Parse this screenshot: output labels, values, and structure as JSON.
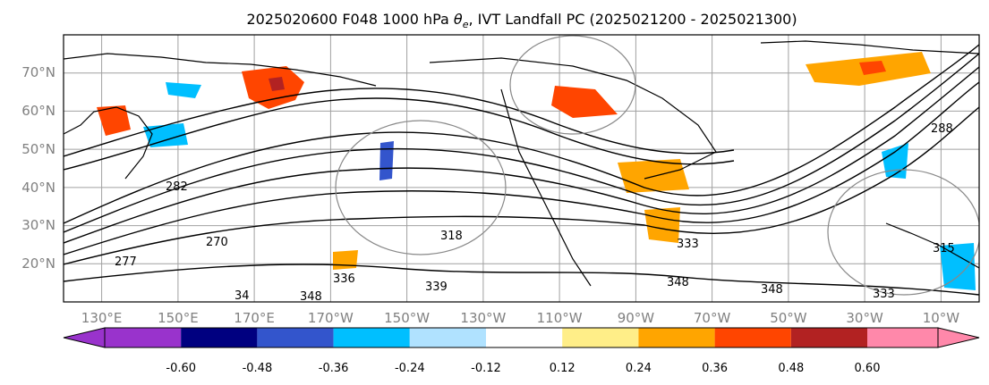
{
  "figure": {
    "title_prefix": "2025020600 F048 1000 hPa ",
    "title_theta": "θ",
    "title_theta_sub": "e",
    "title_suffix": ", IVT Landfall PC (2025021200 - 2025021300)"
  },
  "map": {
    "projection": "PlateCarree",
    "lon_range_deg_east": [
      120,
      360
    ],
    "lat_range_deg": [
      10,
      80
    ],
    "gridlines": true,
    "coastlines": true,
    "lat_labels": [
      "20°N",
      "30°N",
      "40°N",
      "50°N",
      "60°N",
      "70°N"
    ],
    "lon_labels": [
      "130°E",
      "150°E",
      "170°E",
      "170°W",
      "150°W",
      "130°W",
      "110°W",
      "90°W",
      "70°W",
      "50°W",
      "30°W",
      "10°W"
    ],
    "contour_labels": [
      "282",
      "270",
      "277",
      "318",
      "333",
      "348",
      "336",
      "339",
      "348",
      "333",
      "315",
      "288",
      "348",
      "34"
    ]
  },
  "colorbar": {
    "extend": "both",
    "colors": [
      "#9933cc",
      "#000080",
      "#3355cc",
      "#00bfff",
      "#b0e2ff",
      "#ffffff",
      "#ffee88",
      "#ffa500",
      "#ff4500",
      "#b22222",
      "#ff88aa"
    ],
    "tick_labels": [
      "-0.60",
      "-0.48",
      "-0.36",
      "-0.24",
      "-0.12",
      "0.12",
      "0.24",
      "0.36",
      "0.48",
      "0.60"
    ]
  }
}
